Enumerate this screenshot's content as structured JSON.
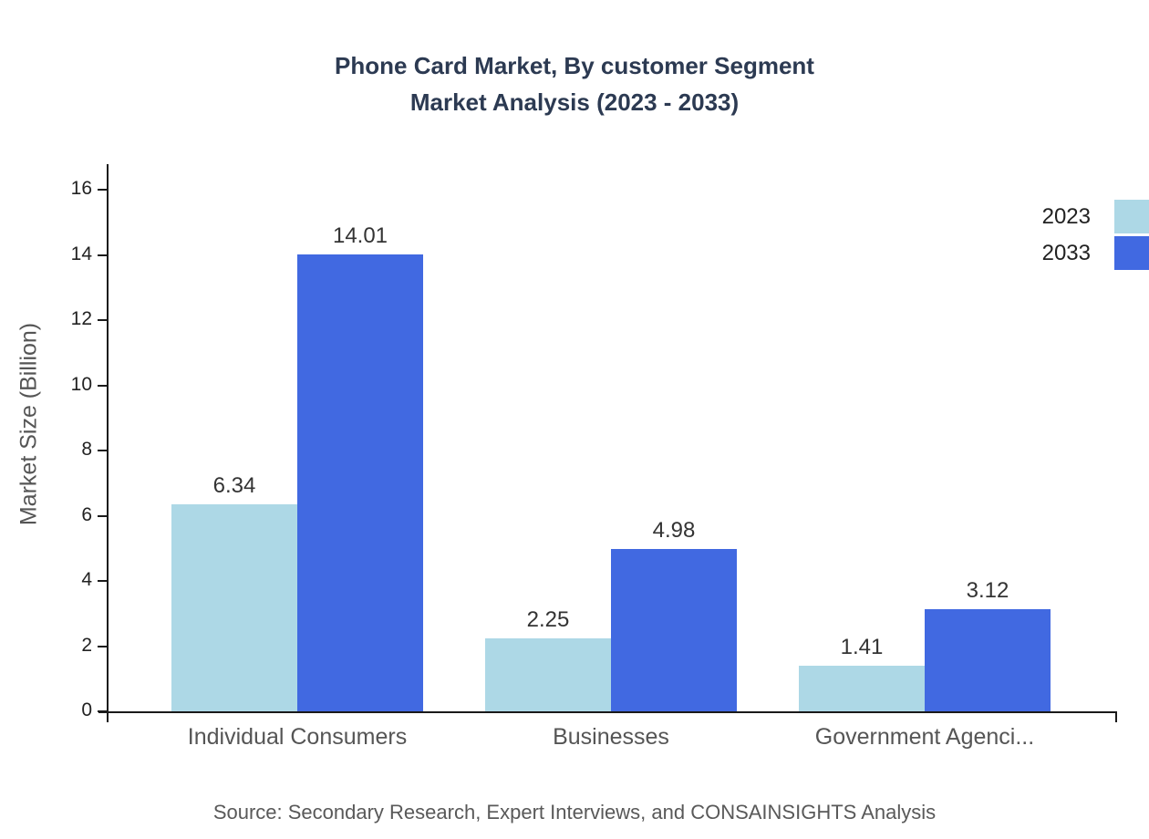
{
  "header": {
    "title_line1": "Phone Card Market, By customer Segment",
    "title_line2": "Market Analysis (2023 - 2033)"
  },
  "source": "Source: Secondary Research, Expert Interviews, and CONSAINSIGHTS Analysis",
  "chart_data": {
    "type": "bar",
    "title": "Phone Card Market, By customer Segment Market Analysis (2023 - 2033)",
    "categories": [
      "Individual Consumers",
      "Businesses",
      "Government Agenci..."
    ],
    "series": [
      {
        "name": "2023",
        "color": "#add8e6",
        "values": [
          6.34,
          2.25,
          1.41
        ]
      },
      {
        "name": "2033",
        "color": "#4169e1",
        "values": [
          14.01,
          4.98,
          3.12
        ]
      }
    ],
    "xlabel": "",
    "ylabel": "Market Size (Billion)",
    "ylim": [
      0,
      16
    ],
    "yticks": [
      0,
      2,
      4,
      6,
      8,
      10,
      12,
      14,
      16
    ],
    "grid": false,
    "value_labels": true,
    "legend_position": "top-right"
  }
}
